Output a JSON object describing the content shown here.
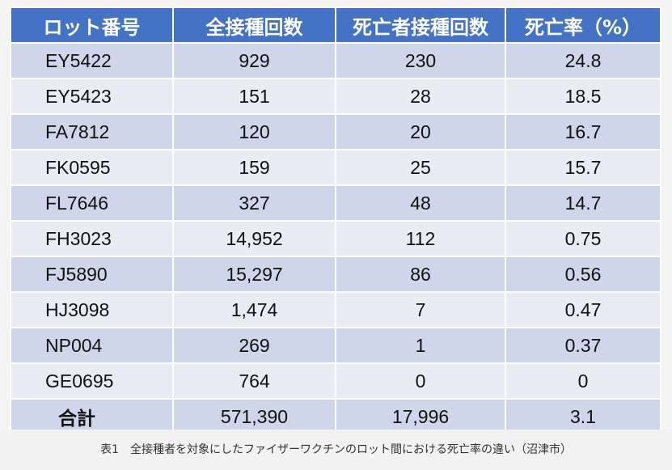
{
  "table": {
    "headers": [
      "ロット番号",
      "全接種回数",
      "死亡者接種回数",
      "死亡率（%）"
    ],
    "rows": [
      [
        "EY5422",
        "929",
        "230",
        "24.8"
      ],
      [
        "EY5423",
        "151",
        "28",
        "18.5"
      ],
      [
        "FA7812",
        "120",
        "20",
        "16.7"
      ],
      [
        "FK0595",
        "159",
        "25",
        "15.7"
      ],
      [
        "FL7646",
        "327",
        "48",
        "14.7"
      ],
      [
        "FH3023",
        "14,952",
        "112",
        "0.75"
      ],
      [
        "FJ5890",
        "15,297",
        "86",
        "0.56"
      ],
      [
        "HJ3098",
        "1,474",
        "7",
        "0.47"
      ],
      [
        "NP004",
        "269",
        "1",
        "0.37"
      ],
      [
        "GE0695",
        "764",
        "0",
        "0"
      ],
      [
        "合計",
        "571,390",
        "17,996",
        "3.1"
      ]
    ]
  },
  "caption": "表1　全接種者を対象にしたファイザーワクチンのロット間における死亡率の違い（沼津市）"
}
